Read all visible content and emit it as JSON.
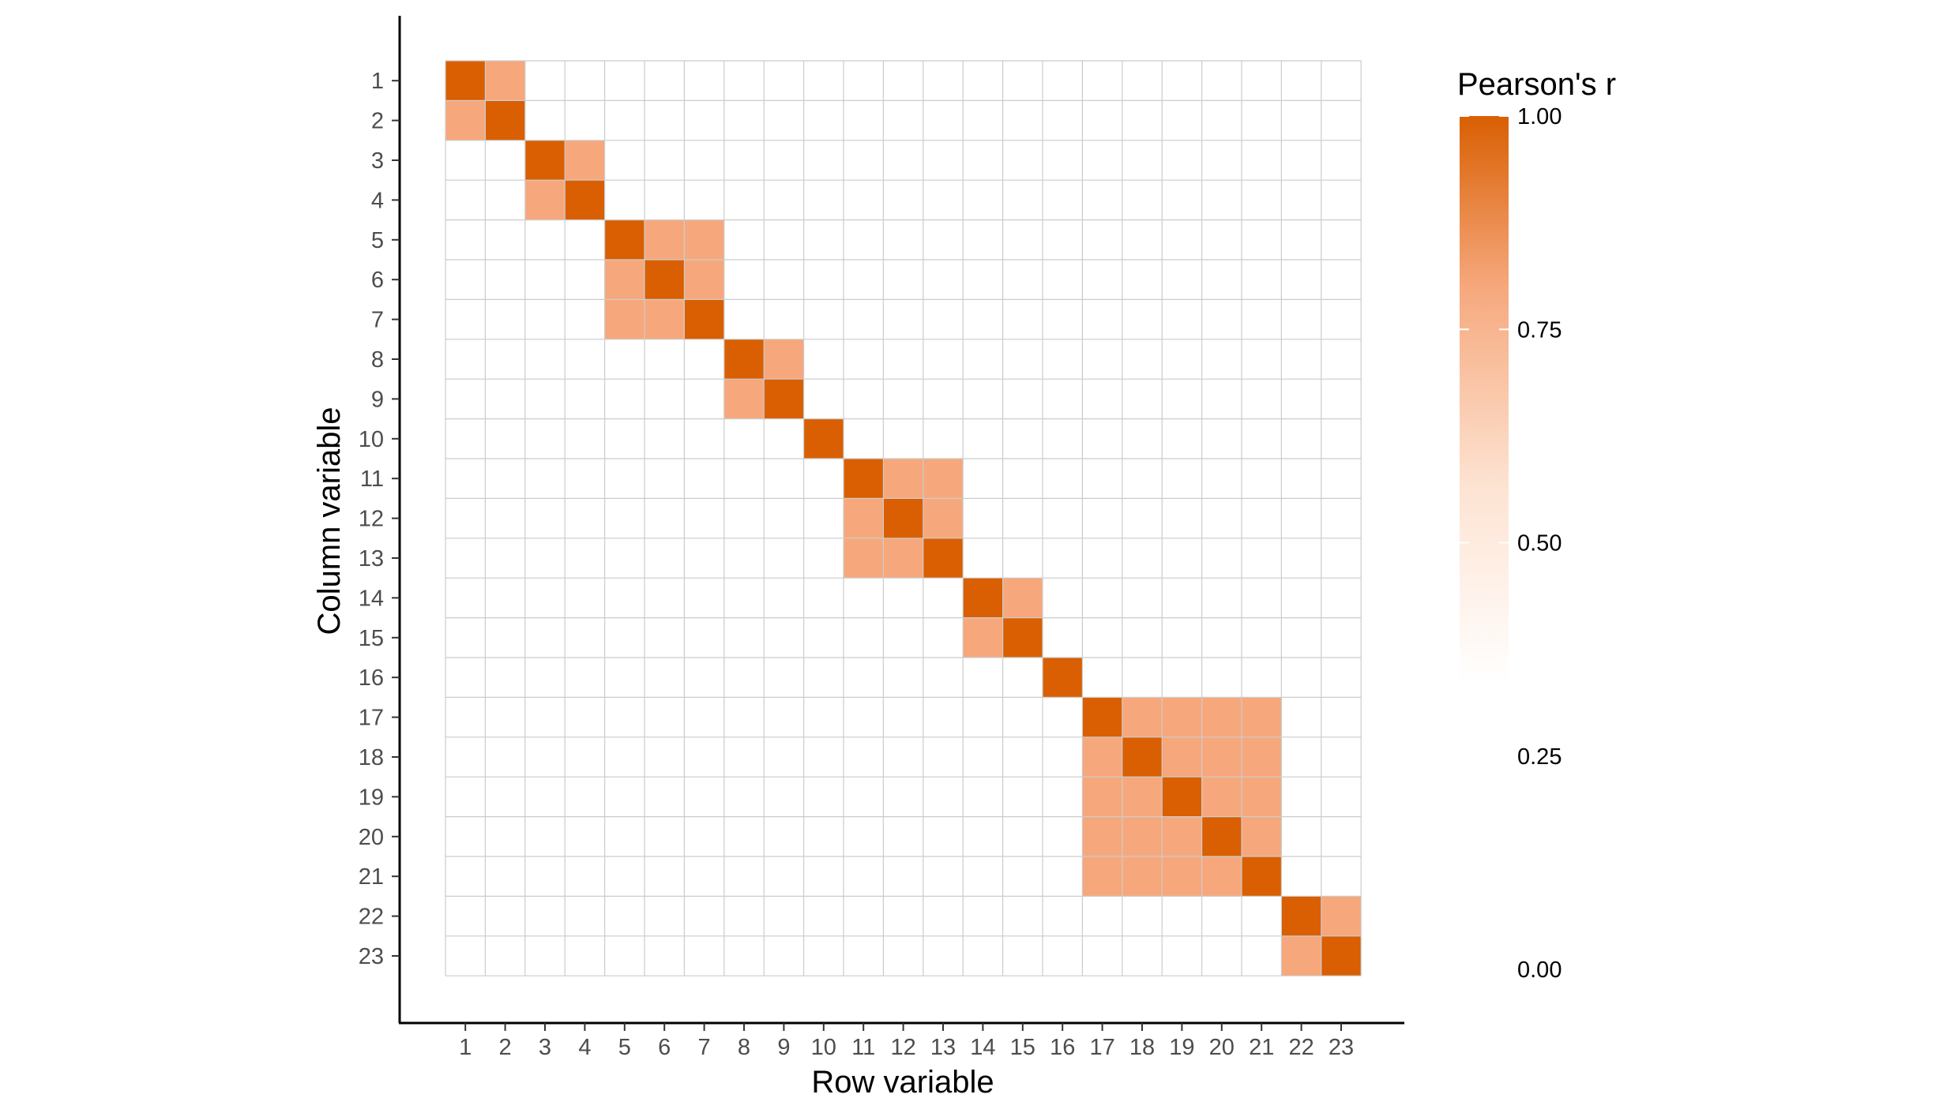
{
  "chart_data": {
    "type": "heatmap",
    "title": "",
    "xlabel": "Row variable",
    "ylabel": "Column variable",
    "x": [
      1,
      2,
      3,
      4,
      5,
      6,
      7,
      8,
      9,
      10,
      11,
      12,
      13,
      14,
      15,
      16,
      17,
      18,
      19,
      20,
      21,
      22,
      23
    ],
    "y": [
      1,
      2,
      3,
      4,
      5,
      6,
      7,
      8,
      9,
      10,
      11,
      12,
      13,
      14,
      15,
      16,
      17,
      18,
      19,
      20,
      21,
      22,
      23
    ],
    "diagonal_value": 1.0,
    "block_value": 0.7,
    "off_block_value": 0.0,
    "blocks": [
      [
        1,
        2
      ],
      [
        3,
        4
      ],
      [
        5,
        6,
        7
      ],
      [
        8,
        9
      ],
      [
        10
      ],
      [
        11,
        12,
        13
      ],
      [
        14,
        15
      ],
      [
        16
      ],
      [
        17,
        18,
        19,
        20,
        21
      ],
      [
        22,
        23
      ]
    ],
    "legend": {
      "title": "Pearson's r",
      "placement": "right",
      "ticks": [
        1.0,
        0.75,
        0.5,
        0.25,
        0.0
      ],
      "tick_labels": [
        "1.00",
        "0.75",
        "0.50",
        "0.25",
        "0.00"
      ],
      "color_low": "#ffffff",
      "color_high": "#d95f02",
      "range": [
        0.0,
        1.0
      ]
    },
    "grid": true,
    "grid_color": "#cccccc"
  }
}
